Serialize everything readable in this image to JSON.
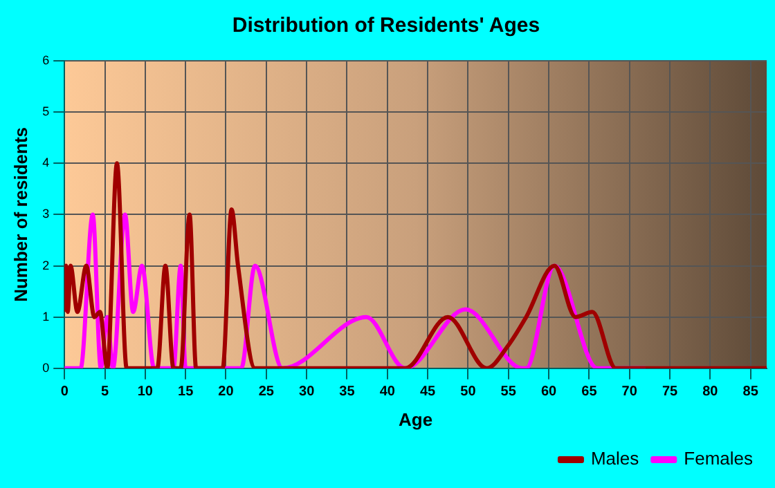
{
  "chart_data": {
    "type": "line",
    "title": "Distribution of Residents' Ages",
    "xlabel": "Age",
    "ylabel": "Number of residents",
    "xlim": [
      0,
      87
    ],
    "xticks": [
      0,
      5,
      10,
      15,
      20,
      25,
      30,
      35,
      40,
      45,
      50,
      55,
      60,
      65,
      70,
      75,
      80,
      85
    ],
    "ylim": [
      0,
      6
    ],
    "yticks": [
      0,
      1,
      2,
      3,
      4,
      5,
      6
    ],
    "grid": true,
    "legend": "bottom right",
    "marker": "none",
    "line_style": "solid",
    "series": [
      {
        "name": "Males",
        "color": "#a00000",
        "x": [
          0,
          0.2,
          0.4,
          0.75,
          1.6,
          2.7,
          3.7,
          4.4,
          5.3,
          6.5,
          7.7,
          11.5,
          12.5,
          13.5,
          14.4,
          15.5,
          16.3,
          19.6,
          20.7,
          21.5,
          23.6,
          42.2,
          47.5,
          52.3,
          55,
          57.2,
          60.7,
          63.3,
          65.4,
          68.3,
          87
        ],
        "values": [
          1.1,
          2,
          1.1,
          2,
          1.1,
          2,
          1,
          1.1,
          0,
          4,
          0,
          0,
          2,
          0,
          0,
          3,
          0,
          0,
          3.1,
          2,
          0,
          0,
          1,
          0,
          0.45,
          1,
          2,
          1,
          1.1,
          0,
          0
        ]
      },
      {
        "name": "Females",
        "color": "#ff00ff",
        "x": [
          0,
          2,
          3.5,
          4.5,
          5.3,
          6,
          7.5,
          8.5,
          9.6,
          11.1,
          13.5,
          14.4,
          15,
          21.9,
          23.6,
          27,
          37.4,
          42.2,
          49.7,
          56.7,
          57.2,
          60.7,
          66,
          72
        ],
        "values": [
          0,
          0,
          3,
          0,
          1,
          0,
          3,
          1.1,
          2,
          0,
          0,
          2,
          0,
          0,
          2,
          0,
          1,
          0,
          1.15,
          0,
          0,
          2,
          0,
          0
        ]
      }
    ]
  }
}
